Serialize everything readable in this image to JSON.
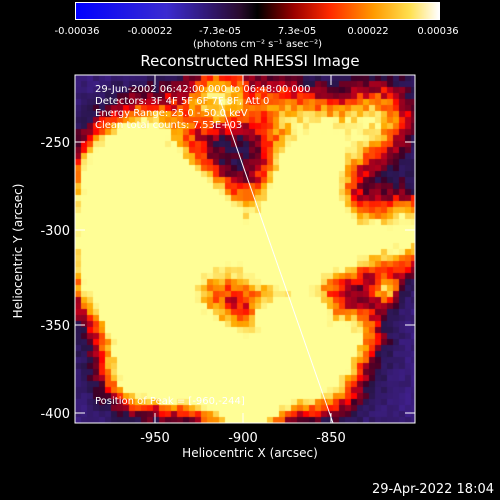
{
  "colorbar": {
    "ticks": [
      "-0.00036",
      "-0.00022",
      "-7.3e-05",
      "7.3e-05",
      "0.00022",
      "0.00036"
    ],
    "unit_label": "(photons cm⁻² s⁻¹ asec⁻²)"
  },
  "plot": {
    "title": "Reconstructed RHESSI Image",
    "xlabel": "Heliocentric X (arcsec)",
    "ylabel": "Heliocentric Y (arcsec)",
    "xticks": [
      "-950",
      "-900",
      "-850"
    ],
    "yticks": [
      "-250",
      "-300",
      "-350",
      "-400"
    ]
  },
  "overlay": {
    "time_range": "29-Jun-2002 06:42:00.000 to 06:48:00.000",
    "detectors": "Detectors: 3F 4F 5F 6F 7F 8F, Att 0",
    "energy": "Energy Range: 25.0 - 50.0 keV",
    "clean_counts": "Clean total counts: 7.53E+03",
    "peak": "Position of Peak = [-960,-244]"
  },
  "timestamp": "29-Apr-2022 18:04"
}
